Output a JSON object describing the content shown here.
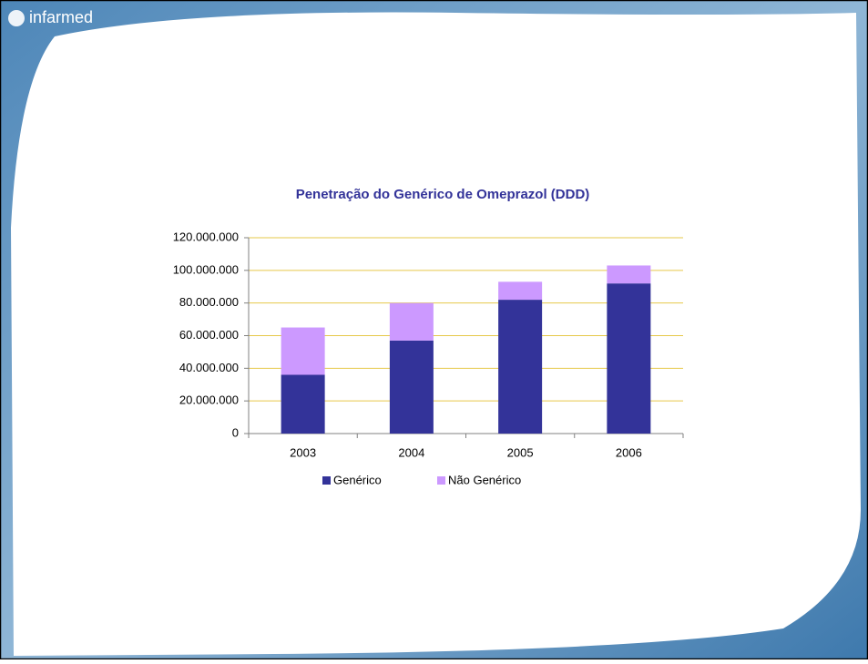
{
  "slide": {
    "logo": "infarmed"
  },
  "chart_data": {
    "type": "stacked_bar",
    "title": "Penetração do Genérico de Omeprazol (DDD)",
    "categories": [
      "2003",
      "2004",
      "2005",
      "2006"
    ],
    "series": [
      {
        "name": "Genérico",
        "color": "#333399",
        "values": [
          36000000,
          57000000,
          82000000,
          92000000
        ]
      },
      {
        "name": "Não Genérico",
        "color": "#cc99ff",
        "values": [
          29000000,
          23000000,
          11000000,
          11000000
        ]
      }
    ],
    "ylim": [
      0,
      120000000
    ],
    "yticks": [
      0,
      {
        "value": 20000000,
        "label": "20.000.000"
      },
      {
        "value": 40000000,
        "label": "40.000.000"
      },
      {
        "value": 60000000,
        "label": "60.000.000"
      },
      {
        "value": 80000000,
        "label": "80.000.000"
      },
      {
        "value": 100000000,
        "label": "100.000.000"
      },
      {
        "value": 120000000,
        "label": "120.000.000"
      }
    ],
    "grid": true,
    "grid_color": "#e6c84a",
    "legend": "bottom"
  }
}
